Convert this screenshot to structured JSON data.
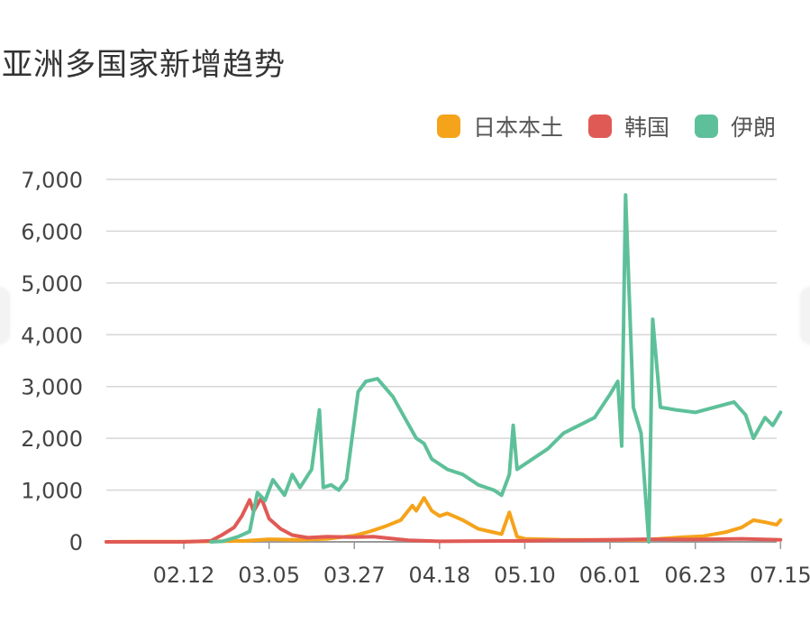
{
  "chart_data": {
    "type": "line",
    "title": "亚洲多国家新增趋势",
    "xlabel": "",
    "ylabel": "",
    "ylim": [
      0,
      7000
    ],
    "yticks": [
      "0",
      "1,000",
      "2,000",
      "3,000",
      "4,000",
      "5,000",
      "6,000",
      "7,000"
    ],
    "xtick_labels": [
      "02.12",
      "03.05",
      "03.27",
      "04.18",
      "05.10",
      "06.01",
      "06.23",
      "07.15"
    ],
    "grid": true,
    "legend_position": "top-right",
    "series": [
      {
        "name": "日本本土",
        "color": "#f5a31a",
        "points": [
          [
            "01.23",
            0
          ],
          [
            "02.01",
            5
          ],
          [
            "02.12",
            5
          ],
          [
            "02.20",
            10
          ],
          [
            "02.28",
            20
          ],
          [
            "03.05",
            50
          ],
          [
            "03.12",
            40
          ],
          [
            "03.20",
            60
          ],
          [
            "03.27",
            120
          ],
          [
            "03.31",
            200
          ],
          [
            "04.04",
            300
          ],
          [
            "04.08",
            420
          ],
          [
            "04.11",
            700
          ],
          [
            "04.12",
            600
          ],
          [
            "04.14",
            850
          ],
          [
            "04.16",
            600
          ],
          [
            "04.18",
            500
          ],
          [
            "04.20",
            550
          ],
          [
            "04.24",
            420
          ],
          [
            "04.28",
            250
          ],
          [
            "05.01",
            200
          ],
          [
            "05.04",
            150
          ],
          [
            "05.06",
            570
          ],
          [
            "05.08",
            100
          ],
          [
            "05.10",
            60
          ],
          [
            "05.20",
            40
          ],
          [
            "06.01",
            40
          ],
          [
            "06.10",
            40
          ],
          [
            "06.20",
            90
          ],
          [
            "06.25",
            110
          ],
          [
            "07.01",
            190
          ],
          [
            "07.05",
            280
          ],
          [
            "07.08",
            420
          ],
          [
            "07.11",
            380
          ],
          [
            "07.14",
            330
          ],
          [
            "07.15",
            420
          ]
        ]
      },
      {
        "name": "韩国",
        "color": "#e05a55",
        "points": [
          [
            "01.23",
            0
          ],
          [
            "02.12",
            0
          ],
          [
            "02.19",
            20
          ],
          [
            "02.22",
            140
          ],
          [
            "02.25",
            280
          ],
          [
            "02.27",
            500
          ],
          [
            "02.29",
            810
          ],
          [
            "03.01",
            590
          ],
          [
            "03.03",
            850
          ],
          [
            "03.05",
            450
          ],
          [
            "03.08",
            250
          ],
          [
            "03.11",
            130
          ],
          [
            "03.15",
            80
          ],
          [
            "03.20",
            100
          ],
          [
            "03.27",
            90
          ],
          [
            "04.01",
            100
          ],
          [
            "04.10",
            30
          ],
          [
            "04.18",
            10
          ],
          [
            "05.10",
            20
          ],
          [
            "05.20",
            30
          ],
          [
            "06.01",
            40
          ],
          [
            "06.10",
            50
          ],
          [
            "06.23",
            45
          ],
          [
            "07.05",
            60
          ],
          [
            "07.15",
            40
          ]
        ]
      },
      {
        "name": "伊朗",
        "color": "#5ec09a",
        "points": [
          [
            "02.19",
            0
          ],
          [
            "02.22",
            10
          ],
          [
            "02.26",
            100
          ],
          [
            "02.29",
            200
          ],
          [
            "03.02",
            950
          ],
          [
            "03.04",
            800
          ],
          [
            "03.06",
            1200
          ],
          [
            "03.09",
            900
          ],
          [
            "03.11",
            1300
          ],
          [
            "03.13",
            1050
          ],
          [
            "03.16",
            1400
          ],
          [
            "03.18",
            2550
          ],
          [
            "03.19",
            1050
          ],
          [
            "03.21",
            1100
          ],
          [
            "03.23",
            1000
          ],
          [
            "03.25",
            1200
          ],
          [
            "03.28",
            2900
          ],
          [
            "03.30",
            3100
          ],
          [
            "04.02",
            3150
          ],
          [
            "04.06",
            2800
          ],
          [
            "04.09",
            2400
          ],
          [
            "04.12",
            2000
          ],
          [
            "04.14",
            1900
          ],
          [
            "04.16",
            1600
          ],
          [
            "04.20",
            1400
          ],
          [
            "04.24",
            1300
          ],
          [
            "04.28",
            1100
          ],
          [
            "05.02",
            1000
          ],
          [
            "05.04",
            900
          ],
          [
            "05.06",
            1300
          ],
          [
            "05.07",
            2250
          ],
          [
            "05.08",
            1400
          ],
          [
            "05.12",
            1600
          ],
          [
            "05.16",
            1800
          ],
          [
            "05.20",
            2100
          ],
          [
            "05.24",
            2250
          ],
          [
            "05.28",
            2400
          ],
          [
            "06.01",
            2850
          ],
          [
            "06.03",
            3100
          ],
          [
            "06.04",
            1850
          ],
          [
            "06.05",
            6700
          ],
          [
            "06.07",
            2600
          ],
          [
            "06.09",
            2100
          ],
          [
            "06.11",
            0
          ],
          [
            "06.12",
            4300
          ],
          [
            "06.14",
            2600
          ],
          [
            "06.18",
            2550
          ],
          [
            "06.23",
            2500
          ],
          [
            "06.28",
            2600
          ],
          [
            "07.03",
            2700
          ],
          [
            "07.06",
            2450
          ],
          [
            "07.08",
            2000
          ],
          [
            "07.11",
            2400
          ],
          [
            "07.13",
            2250
          ],
          [
            "07.15",
            2500
          ]
        ]
      }
    ]
  }
}
